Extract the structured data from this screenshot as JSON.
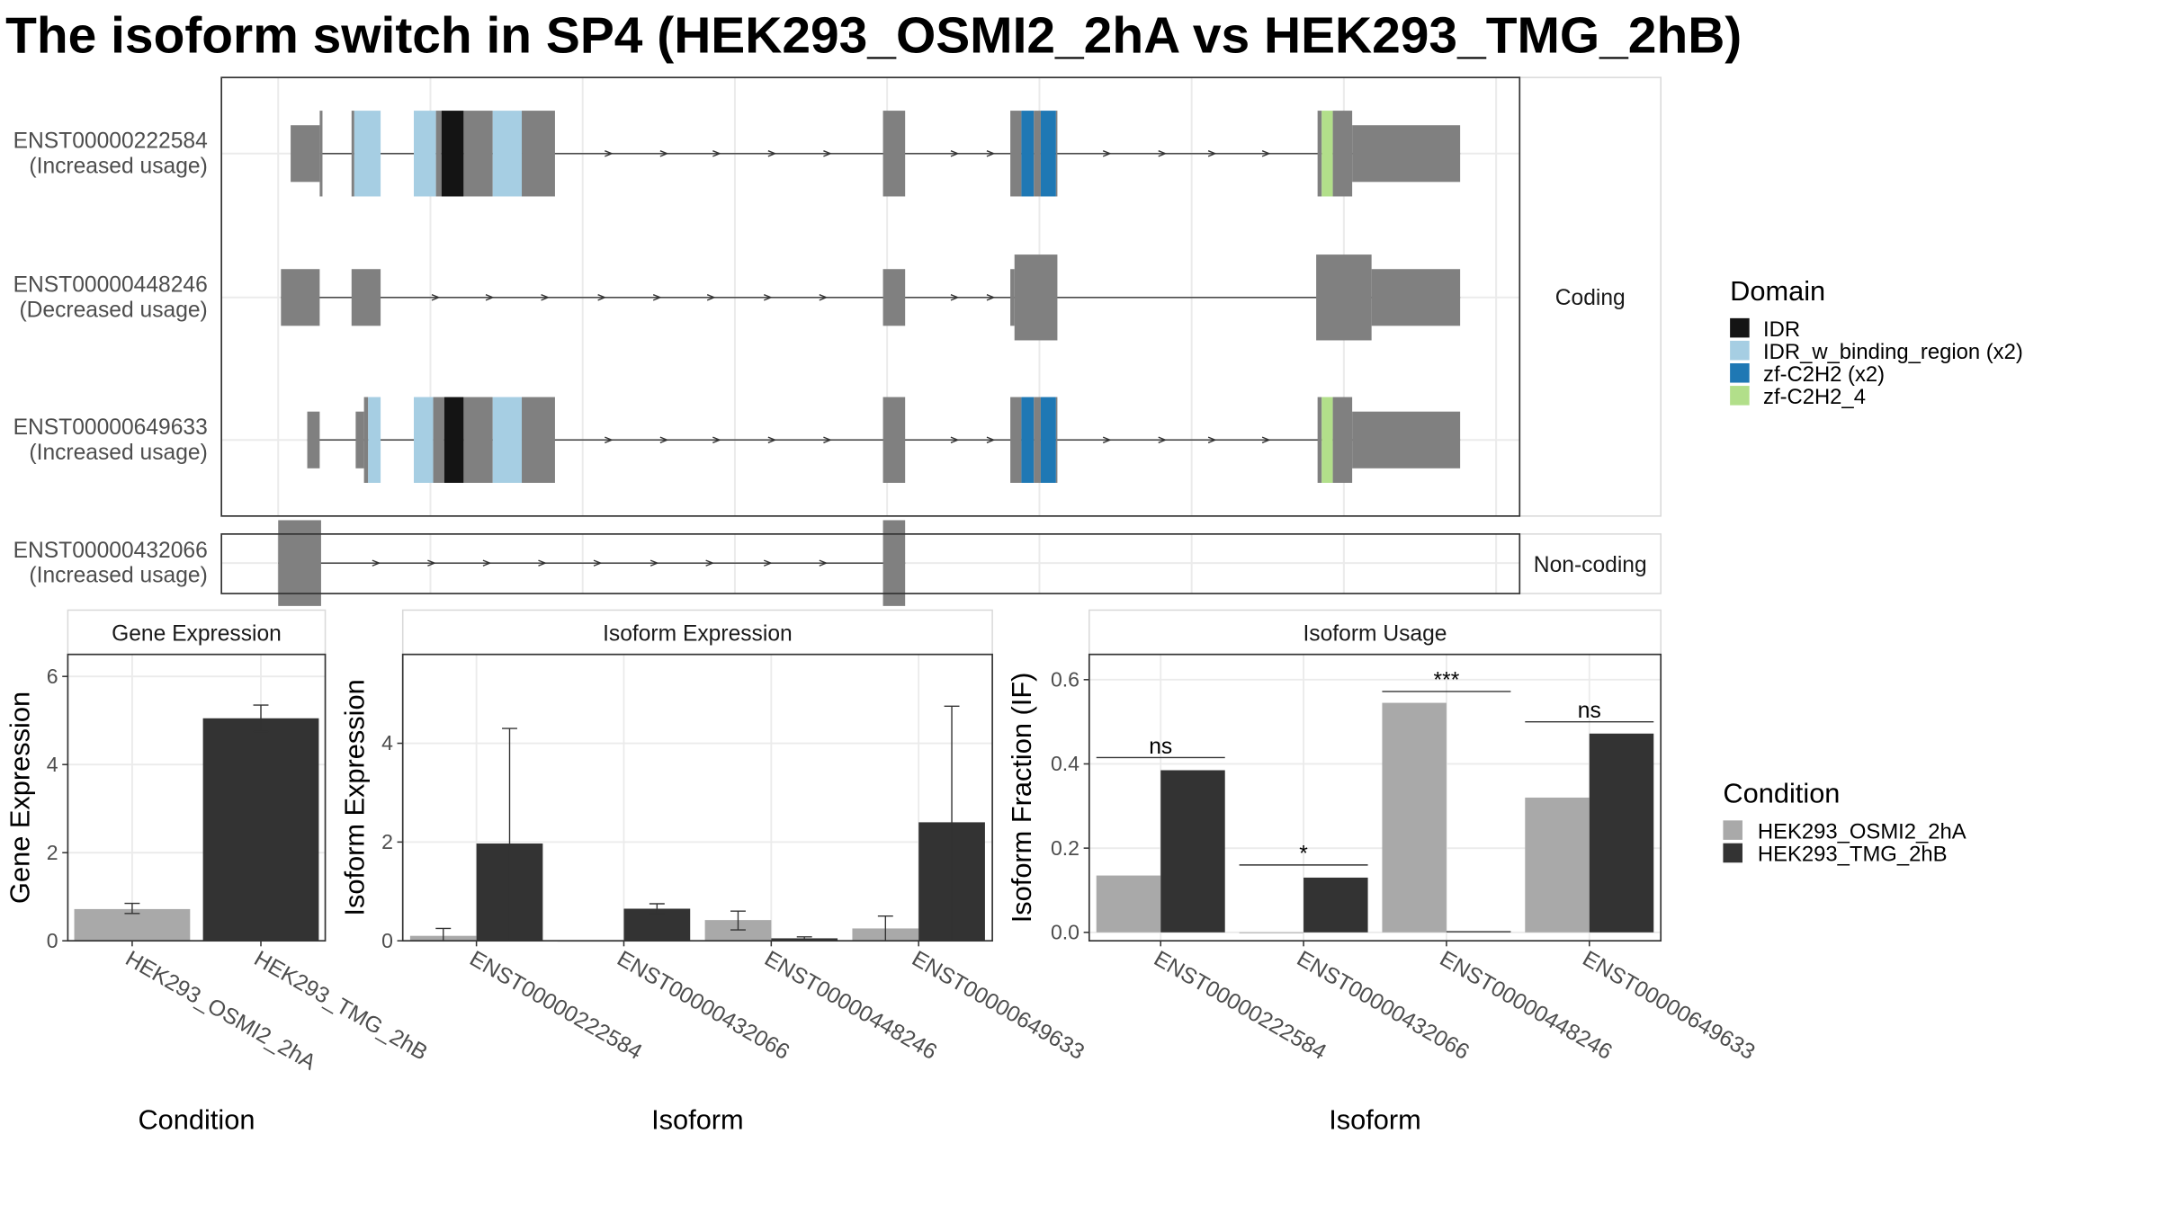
{
  "chart_data": [
    {
      "type": "gene-structure",
      "title": "The isoform switch in SP4 (HEK293_OSMI2_2hA vs HEK293_TMG_2hB)",
      "panel_labels": [
        "Coding",
        "Non-coding"
      ],
      "legend_title": "Domain",
      "domain_legend": [
        {
          "label": "IDR",
          "color": "#141414"
        },
        {
          "label": "IDR_w_binding_region (x2)",
          "color": "#a6cee3"
        },
        {
          "label": "zf-C2H2 (x2)",
          "color": "#1f78b4"
        },
        {
          "label": "zf-C2H2_4",
          "color": "#b2df8a"
        }
      ],
      "exon_color": "#808080",
      "transcripts": [
        {
          "id": "ENST00000222584",
          "status": "(Increased usage)",
          "group": "Coding"
        },
        {
          "id": "ENST00000448246",
          "status": "(Decreased usage)",
          "group": "Coding"
        },
        {
          "id": "ENST00000649633",
          "status": "(Increased usage)",
          "group": "Coding"
        },
        {
          "id": "ENST00000432066",
          "status": "(Increased usage)",
          "group": "Non-coding"
        }
      ]
    },
    {
      "type": "bar",
      "title": "Gene Expression",
      "xlabel": "Condition",
      "ylabel": "Gene Expression",
      "ylim": [
        0,
        6.5
      ],
      "yticks": [
        0,
        2,
        4,
        6
      ],
      "categories": [
        "HEK293_OSMI2_2hA",
        "HEK293_TMG_2hB"
      ],
      "values": [
        0.72,
        5.05
      ],
      "errors": [
        [
          0.62,
          0.85
        ],
        [
          4.75,
          5.35
        ]
      ]
    },
    {
      "type": "bar",
      "title": "Isoform Expression",
      "xlabel": "Isoform",
      "ylabel": "Isoform Expression",
      "ylim": [
        0,
        5.8
      ],
      "yticks": [
        0,
        2,
        4
      ],
      "categories": [
        "ENST00000222584",
        "ENST00000432066",
        "ENST00000448246",
        "ENST00000649633"
      ],
      "series": [
        {
          "name": "HEK293_OSMI2_2hA",
          "values": [
            0.1,
            0.0,
            0.42,
            0.25
          ],
          "errors": [
            [
              0.0,
              0.25
            ],
            [
              0.0,
              0.0
            ],
            [
              0.22,
              0.6
            ],
            [
              0.0,
              0.5
            ]
          ]
        },
        {
          "name": "HEK293_TMG_2hB",
          "values": [
            1.97,
            0.65,
            0.05,
            2.4
          ],
          "errors": [
            [
              0.0,
              4.3
            ],
            [
              0.55,
              0.75
            ],
            [
              0.0,
              0.08
            ],
            [
              0.0,
              4.75
            ]
          ]
        }
      ]
    },
    {
      "type": "bar",
      "title": "Isoform Usage",
      "xlabel": "Isoform",
      "ylabel": "Isoform Fraction (IF)",
      "ylim": [
        -0.02,
        0.66
      ],
      "yticks": [
        "0.0",
        "0.2",
        "0.4",
        "0.6"
      ],
      "categories": [
        "ENST00000222584",
        "ENST00000432066",
        "ENST00000448246",
        "ENST00000649633"
      ],
      "series": [
        {
          "name": "HEK293_OSMI2_2hA",
          "values": [
            0.135,
            0.0,
            0.545,
            0.32
          ]
        },
        {
          "name": "HEK293_TMG_2hB",
          "values": [
            0.385,
            0.13,
            0.003,
            0.472
          ]
        }
      ],
      "significance": [
        "ns",
        "*",
        "***",
        "ns"
      ],
      "significance_level": [
        0.415,
        0.16,
        0.572,
        0.5
      ]
    }
  ],
  "legend": {
    "title": "Condition",
    "items": [
      {
        "label": "HEK293_OSMI2_2hA",
        "color": "#a9a9a9"
      },
      {
        "label": "HEK293_TMG_2hB",
        "color": "#333333"
      }
    ]
  }
}
